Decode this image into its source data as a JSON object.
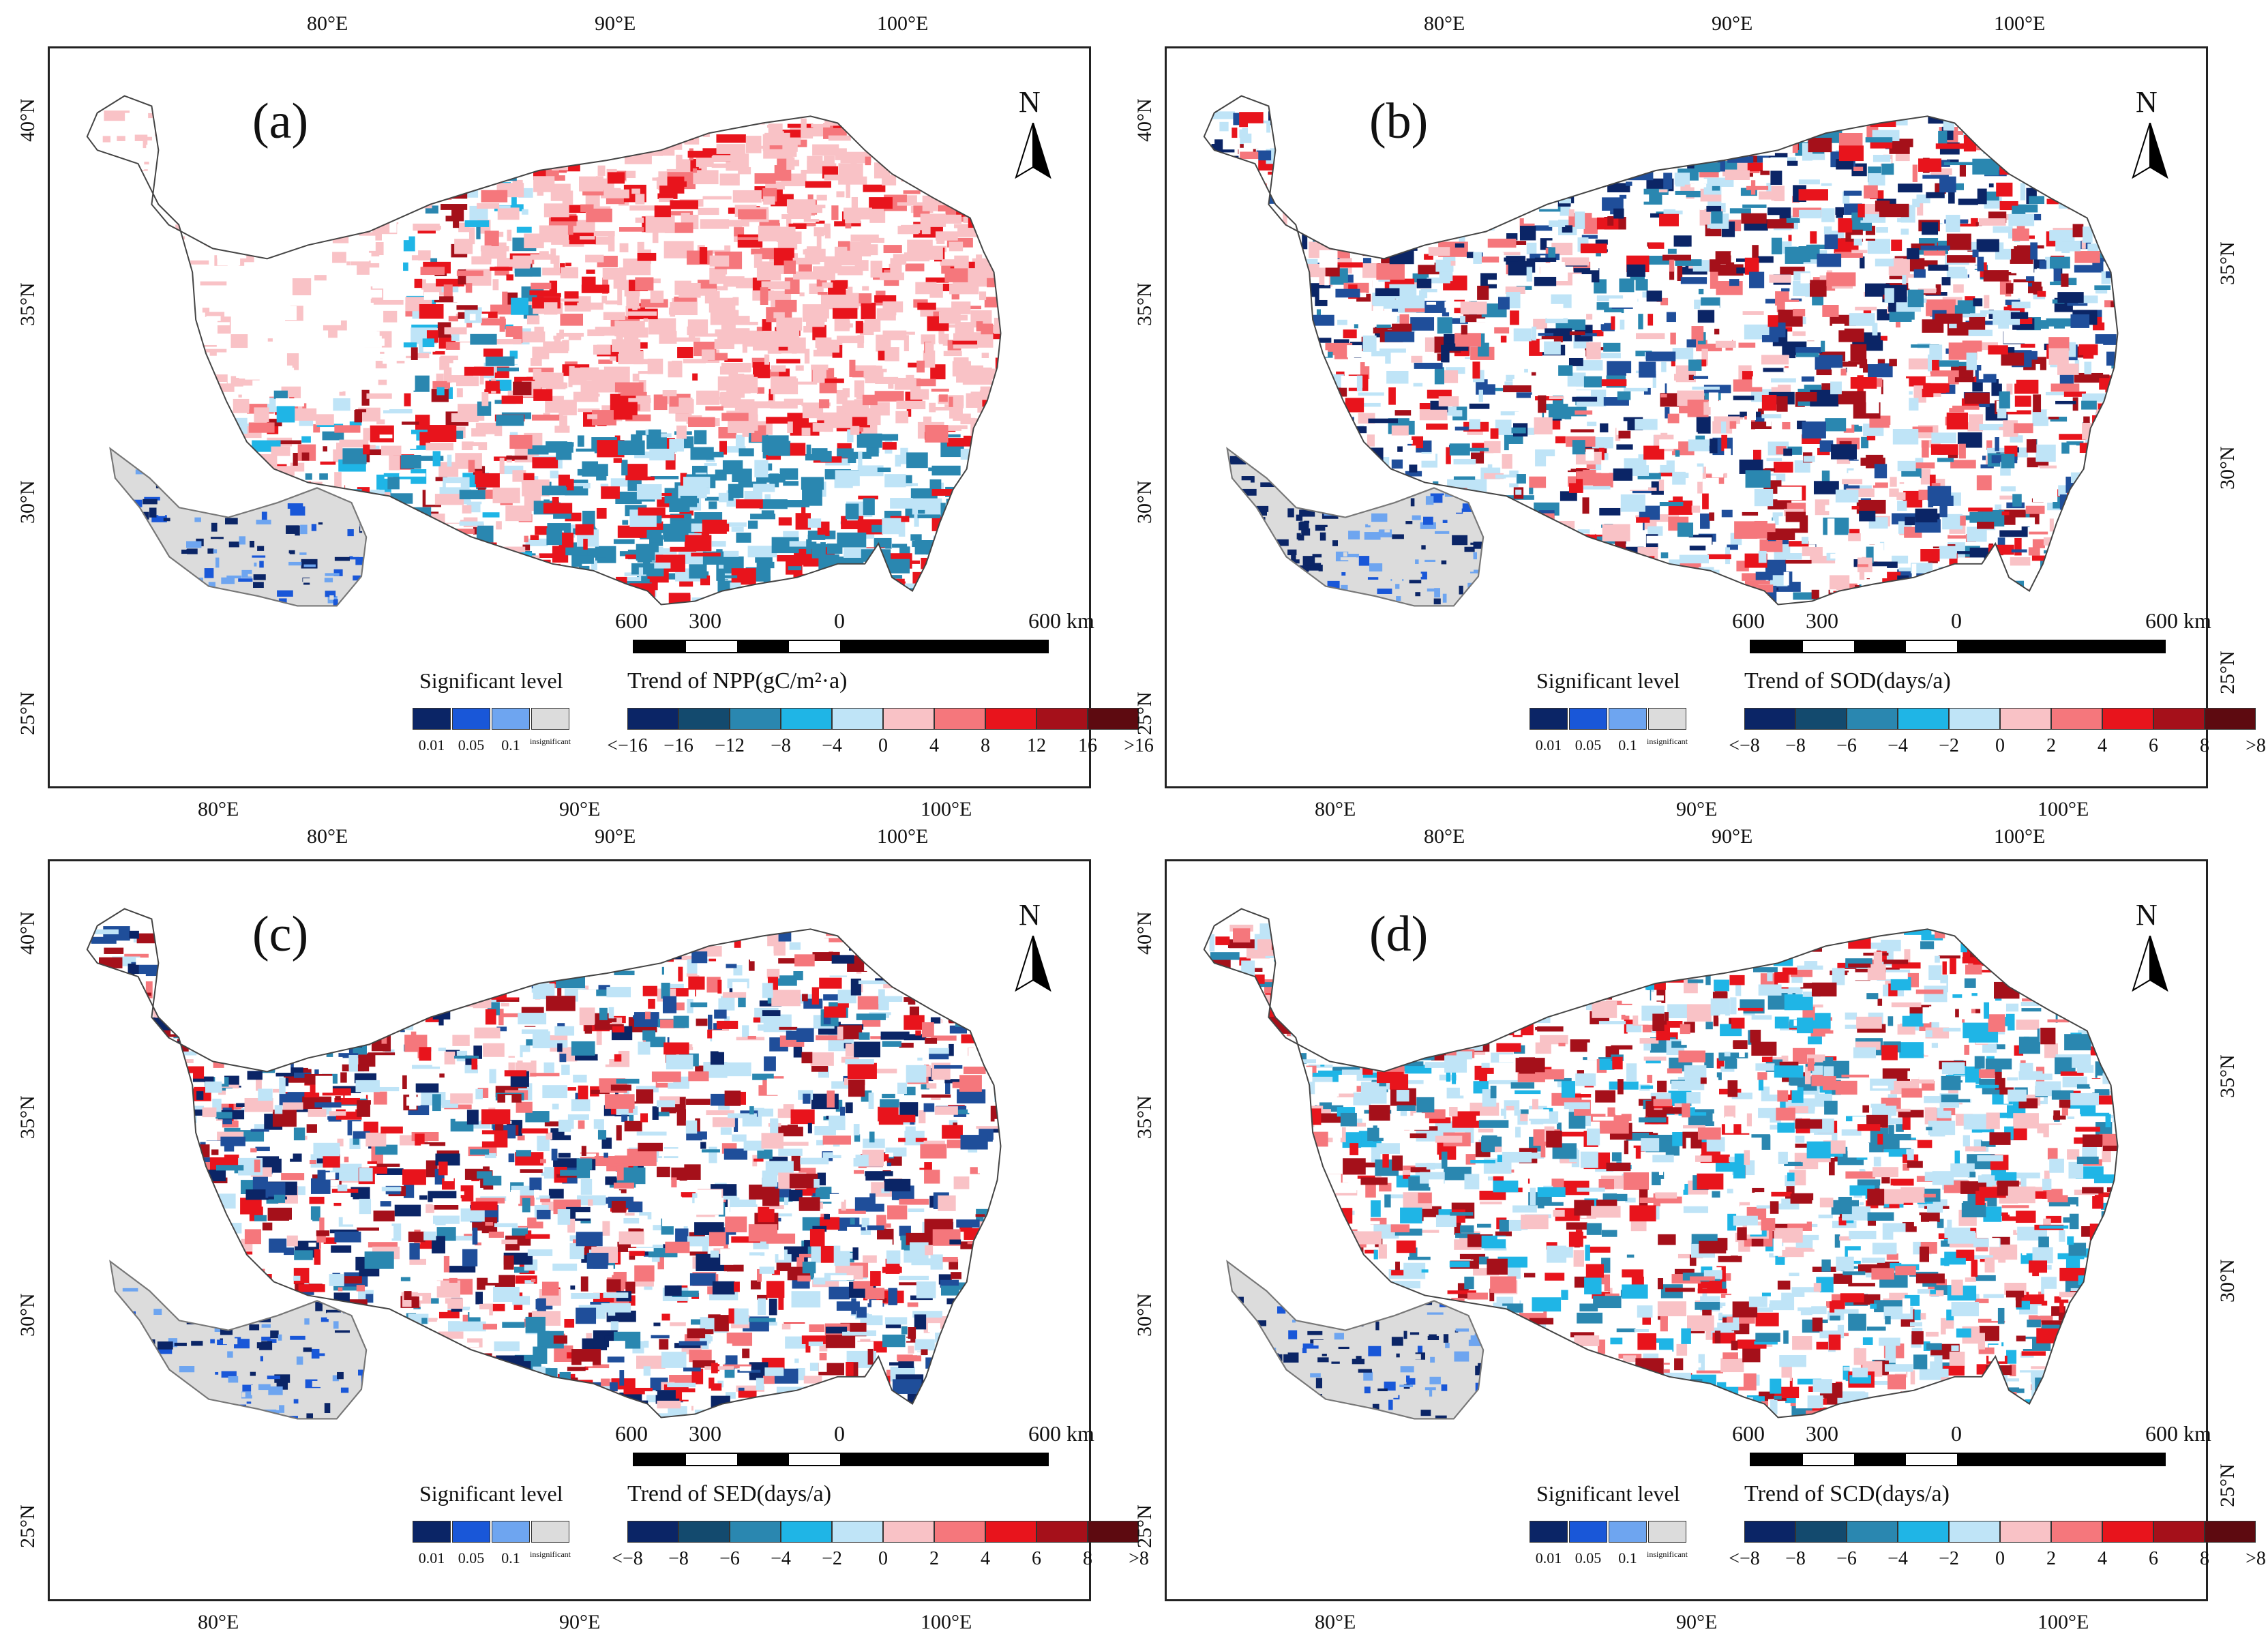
{
  "colors": {
    "blue_dark": "#0b2566",
    "blue_mid": "#1f4e9a",
    "teal": "#2a87b0",
    "cyan": "#1fb5e6",
    "light_blue": "#bfe4f7",
    "pink": "#f9c2c6",
    "salmon": "#f5777c",
    "red": "#e8141c",
    "dark_red": "#a5101a",
    "maroon": "#5d0a10",
    "gray": "#d4d4d4",
    "sig_001": "#0b2566",
    "sig_005": "#1957d8",
    "sig_01": "#6ea5f0",
    "sig_insig": "#dcdcdc"
  },
  "panels": [
    {
      "letter": "(a)",
      "legend_title": "Trend of NPP(gC/m²·a)",
      "ticks": [
        "<−16",
        "−16",
        "−12",
        "−8",
        "−4",
        "0",
        "4",
        "8",
        "12",
        "16",
        ">16"
      ],
      "top_lons": [
        "80°E",
        "90°E",
        "100°E"
      ],
      "bottom_lons": [
        "80°E",
        "90°E",
        "100°E"
      ],
      "left_lats": [
        "40°N",
        "35°N",
        "30°N",
        "25°N"
      ],
      "right_lats": []
    },
    {
      "letter": "(b)",
      "legend_title": "Trend of SOD(days/a)",
      "ticks": [
        "<−8",
        "−8",
        "−6",
        "−4",
        "−2",
        "0",
        "2",
        "4",
        "6",
        "8",
        ">8"
      ],
      "top_lons": [
        "80°E",
        "90°E",
        "100°E"
      ],
      "bottom_lons": [
        "80°E",
        "90°E",
        "100°E"
      ],
      "left_lats": [
        "40°N",
        "35°N",
        "30°N",
        "25°N"
      ],
      "right_lats": [
        "35°N",
        "30°N",
        "25°N"
      ]
    },
    {
      "letter": "(c)",
      "legend_title": "Trend of SED(days/a)",
      "ticks": [
        "<−8",
        "−8",
        "−6",
        "−4",
        "−2",
        "0",
        "2",
        "4",
        "6",
        "8",
        ">8"
      ],
      "top_lons": [
        "80°E",
        "90°E",
        "100°E"
      ],
      "bottom_lons": [
        "80°E",
        "90°E",
        "100°E"
      ],
      "left_lats": [
        "40°N",
        "35°N",
        "30°N",
        "25°N"
      ],
      "right_lats": []
    },
    {
      "letter": "(d)",
      "legend_title": "Trend of SCD(days/a)",
      "ticks": [
        "<−8",
        "−8",
        "−6",
        "−4",
        "−2",
        "0",
        "2",
        "4",
        "6",
        "8",
        ">8"
      ],
      "top_lons": [
        "80°E",
        "90°E",
        "100°E"
      ],
      "bottom_lons": [
        "80°E",
        "90°E",
        "100°E"
      ],
      "left_lats": [
        "40°N",
        "35°N",
        "30°N",
        "25°N"
      ],
      "right_lats": [
        "35°N",
        "30°N",
        "25°N"
      ]
    }
  ],
  "common": {
    "north": "N",
    "scale_600": "600",
    "scale_300": "300",
    "scale_0": "0",
    "scale_end": "600 km",
    "sig_title": "Significant level",
    "sig_ticks": [
      "0.01",
      "0.05",
      "0.1",
      "insignificant"
    ]
  }
}
